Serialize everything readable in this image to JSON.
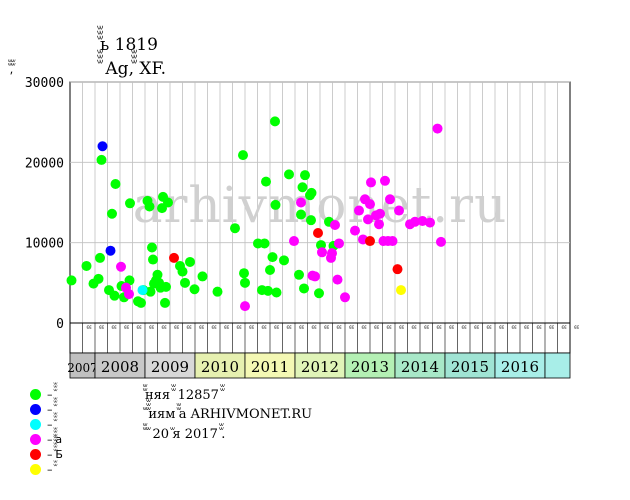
{
  "header": {
    "title": "ꙻꙻꙻь 1819",
    "subtitle": "ꙻꙻꙻ Ag,ꙻꙻꙻ XF.",
    "y_unit": "ꙻꙻ,ꙻꙻ"
  },
  "legend": [
    {
      "label": "– ꙻꙻꙻ",
      "color": "#00ff00"
    },
    {
      "label": "– ꙻꙻꙻ",
      "color": "#0000ff"
    },
    {
      "label": "– ꙻꙻꙻ",
      "color": "#00ffff"
    },
    {
      "label": "– ꙻꙻꙻа",
      "color": "#ff00ff"
    },
    {
      "label": "– ꙻꙻꙻꙻꙻБ",
      "color": "#ff0000"
    },
    {
      "label": "– ꙻꙻ",
      "color": "#ffff00"
    }
  ],
  "notes": {
    "line1": "ꙻꙻняя ꙻꙻ 12857 ꙻꙻ",
    "line2": "ꙻ ꙻꙻꙻиям ꙻꙻа ARHIVMONET.RU",
    "line3": "ꙻꙻ ꙻ 20 ꙻя 2017 ꙻꙻ."
  },
  "watermark": "arhivmonet.ru",
  "chart_data": {
    "type": "scatter",
    "ylim": [
      0,
      30000
    ],
    "yticks": [
      0,
      10000,
      20000,
      30000
    ],
    "ytick_labels": [
      "0",
      "10000",
      "20000",
      "30000"
    ],
    "grid": true,
    "xlim": [
      2007.0,
      2017.0
    ],
    "quarter_labels": [
      "ꙻꙻ",
      "ꙻꙻ",
      "ꙻꙻ",
      "ꙻꙻ",
      "ꙻꙻ",
      "ꙻꙻ",
      "ꙻꙻ",
      "ꙻꙻ",
      "ꙻꙻ",
      "ꙻꙻ",
      "ꙻꙻ",
      "ꙻꙻ",
      "ꙻꙻ",
      "ꙻꙻ",
      "ꙻꙻ",
      "ꙻꙻ",
      "ꙻꙻ",
      "ꙻꙻ",
      "ꙻꙻ",
      "ꙻꙻ",
      "ꙻꙻ",
      "ꙻꙻ",
      "ꙻꙻ",
      "ꙻꙻ",
      "ꙻꙻ",
      "ꙻꙻ",
      "ꙻꙻ",
      "ꙻꙻ",
      "ꙻꙻ",
      "ꙻꙻ",
      "ꙻꙻ",
      "ꙻꙻ",
      "ꙻꙻ",
      "ꙻꙻ",
      "ꙻꙻ",
      "ꙻꙻ",
      "ꙻꙻ",
      "ꙻꙻ",
      "ꙻꙻ",
      "ꙻꙻ"
    ],
    "years": [
      {
        "label": "2007",
        "start": 2007.0,
        "end": 2007.5,
        "color": "#c0c0c0"
      },
      {
        "label": "2008",
        "start": 2007.5,
        "end": 2008.5,
        "color": "#c8c8c8"
      },
      {
        "label": "2009",
        "start": 2008.5,
        "end": 2009.5,
        "color": "#d8d8d8"
      },
      {
        "label": "2010",
        "start": 2009.5,
        "end": 2010.5,
        "color": "#e6f0b0"
      },
      {
        "label": "2011",
        "start": 2010.5,
        "end": 2011.5,
        "color": "#f4f8b4"
      },
      {
        "label": "2012",
        "start": 2011.5,
        "end": 2012.5,
        "color": "#e0f4b8"
      },
      {
        "label": "2013",
        "start": 2012.5,
        "end": 2013.5,
        "color": "#b4f0b4"
      },
      {
        "label": "2014",
        "start": 2013.5,
        "end": 2014.5,
        "color": "#a8e8c8"
      },
      {
        "label": "2015",
        "start": 2014.5,
        "end": 2015.5,
        "color": "#a0e4d4"
      },
      {
        "label": "2016",
        "start": 2015.5,
        "end": 2016.5,
        "color": "#a8eee8"
      },
      {
        "label": "",
        "start": 2016.5,
        "end": 2017.0,
        "color": "#a8eee8"
      }
    ],
    "series": [
      {
        "name": "ꙻꙻꙻ",
        "color": "#00ff00",
        "points": [
          [
            2007.03,
            5300
          ],
          [
            2007.33,
            7100
          ],
          [
            2007.47,
            4900
          ],
          [
            2007.57,
            5500
          ],
          [
            2007.6,
            8100
          ],
          [
            2007.63,
            20300
          ],
          [
            2007.78,
            4100
          ],
          [
            2007.84,
            13600
          ],
          [
            2007.89,
            3400
          ],
          [
            2007.91,
            17300
          ],
          [
            2008.03,
            4600
          ],
          [
            2008.08,
            3200
          ],
          [
            2008.19,
            5300
          ],
          [
            2008.2,
            14900
          ],
          [
            2008.36,
            2700
          ],
          [
            2008.42,
            2500
          ],
          [
            2008.47,
            4100
          ],
          [
            2008.55,
            15200
          ],
          [
            2008.59,
            14500
          ],
          [
            2008.61,
            3900
          ],
          [
            2008.64,
            9400
          ],
          [
            2008.66,
            7900
          ],
          [
            2008.68,
            4900
          ],
          [
            2008.72,
            5300
          ],
          [
            2008.75,
            6000
          ],
          [
            2008.78,
            5000
          ],
          [
            2008.81,
            4400
          ],
          [
            2008.84,
            14300
          ],
          [
            2008.86,
            15700
          ],
          [
            2008.9,
            2500
          ],
          [
            2008.92,
            4500
          ],
          [
            2008.96,
            15000
          ],
          [
            2009.2,
            7100
          ],
          [
            2009.25,
            6400
          ],
          [
            2009.3,
            5000
          ],
          [
            2009.4,
            7600
          ],
          [
            2009.49,
            4200
          ],
          [
            2009.65,
            5800
          ],
          [
            2009.95,
            3900
          ],
          [
            2010.3,
            11800
          ],
          [
            2010.46,
            20900
          ],
          [
            2010.48,
            6200
          ],
          [
            2010.5,
            5000
          ],
          [
            2010.76,
            9900
          ],
          [
            2010.84,
            4100
          ],
          [
            2010.89,
            9900
          ],
          [
            2010.92,
            17600
          ],
          [
            2010.96,
            4000
          ],
          [
            2011.0,
            6600
          ],
          [
            2011.05,
            8200
          ],
          [
            2011.1,
            25100
          ],
          [
            2011.11,
            14700
          ],
          [
            2011.13,
            3800
          ],
          [
            2011.28,
            7800
          ],
          [
            2011.38,
            18500
          ],
          [
            2011.58,
            6000
          ],
          [
            2011.62,
            13500
          ],
          [
            2011.65,
            16900
          ],
          [
            2011.68,
            4300
          ],
          [
            2011.7,
            18400
          ],
          [
            2011.8,
            15900
          ],
          [
            2011.83,
            16200
          ],
          [
            2011.82,
            12800
          ],
          [
            2011.98,
            3700
          ],
          [
            2012.02,
            9700
          ],
          [
            2012.18,
            12600
          ],
          [
            2012.27,
            9600
          ]
        ]
      },
      {
        "name": "ꙻꙻꙻ",
        "color": "#0000ff",
        "points": [
          [
            2007.65,
            22000
          ],
          [
            2007.81,
            9000
          ]
        ]
      },
      {
        "name": "ꙻꙻꙻ",
        "color": "#00ffff",
        "points": [
          [
            2008.45,
            4100
          ]
        ]
      },
      {
        "name": "ꙻꙻꙻа",
        "color": "#ff00ff",
        "points": [
          [
            2008.02,
            7000
          ],
          [
            2008.12,
            4400
          ],
          [
            2008.18,
            3600
          ],
          [
            2010.5,
            2100
          ],
          [
            2011.48,
            10200
          ],
          [
            2011.62,
            15000
          ],
          [
            2011.85,
            5900
          ],
          [
            2011.9,
            5800
          ],
          [
            2012.04,
            8800
          ],
          [
            2012.22,
            8100
          ],
          [
            2012.24,
            8700
          ],
          [
            2012.3,
            12200
          ],
          [
            2012.35,
            5400
          ],
          [
            2012.38,
            9900
          ],
          [
            2012.5,
            3200
          ],
          [
            2012.7,
            11500
          ],
          [
            2012.78,
            14000
          ],
          [
            2012.86,
            10400
          ],
          [
            2012.9,
            15400
          ],
          [
            2012.96,
            12900
          ],
          [
            2013.0,
            14800
          ],
          [
            2013.02,
            17500
          ],
          [
            2013.12,
            13400
          ],
          [
            2013.18,
            12300
          ],
          [
            2013.2,
            13600
          ],
          [
            2013.27,
            10200
          ],
          [
            2013.3,
            17700
          ],
          [
            2013.36,
            10200
          ],
          [
            2013.4,
            15400
          ],
          [
            2013.45,
            10200
          ],
          [
            2013.58,
            14000
          ],
          [
            2013.8,
            12300
          ],
          [
            2013.9,
            12600
          ],
          [
            2014.05,
            12700
          ],
          [
            2014.2,
            12500
          ],
          [
            2014.35,
            24200
          ],
          [
            2014.42,
            10100
          ]
        ]
      },
      {
        "name": "ꙻꙻꙻꙻꙻБ",
        "color": "#ff0000",
        "points": [
          [
            2009.08,
            8100
          ],
          [
            2011.96,
            11200
          ],
          [
            2013.0,
            10200
          ],
          [
            2013.55,
            6700
          ]
        ]
      },
      {
        "name": "ꙻꙻ",
        "color": "#ffff00",
        "points": [
          [
            2013.62,
            4100
          ]
        ]
      }
    ]
  }
}
